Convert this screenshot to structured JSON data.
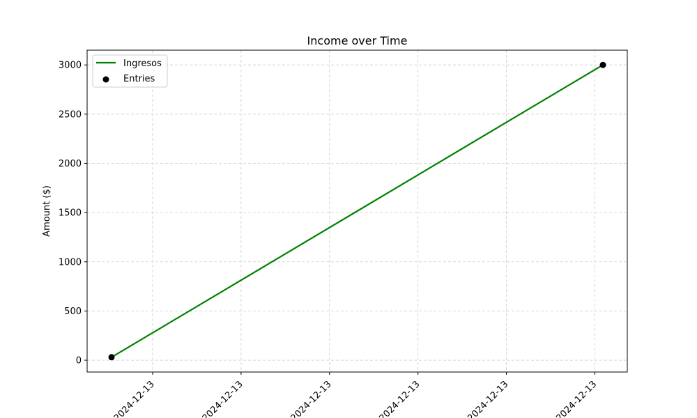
{
  "chart_data": {
    "type": "line",
    "title": "Income over Time",
    "xlabel": "",
    "ylabel": "Amount ($)",
    "x_tick_labels": [
      "2024-12-13",
      "2024-12-13",
      "2024-12-13",
      "2024-12-13",
      "2024-12-13",
      "2024-12-13"
    ],
    "y_ticks": [
      0,
      500,
      1000,
      1500,
      2000,
      2500,
      3000
    ],
    "ylim": [
      -120,
      3150
    ],
    "grid": true,
    "legend": "top-left",
    "series": [
      {
        "name": "Ingresos",
        "kind": "line",
        "color": "#008000",
        "points": [
          {
            "x": "2024-12-13",
            "y": 30
          },
          {
            "x": "2024-12-13",
            "y": 3000
          }
        ]
      },
      {
        "name": "Entries",
        "kind": "scatter",
        "color": "#000000",
        "points": [
          {
            "x": "2024-12-13",
            "y": 30
          },
          {
            "x": "2024-12-13",
            "y": 3000
          }
        ]
      }
    ]
  }
}
